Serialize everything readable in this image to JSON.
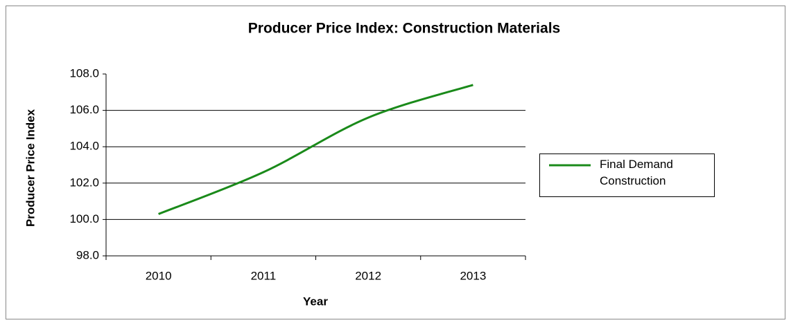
{
  "chart_data": {
    "type": "line",
    "title": "Producer Price Index: Construction Materials",
    "x_label": "Year",
    "y_label": "Producer Price Index",
    "categories": [
      "2010",
      "2011",
      "2012",
      "2013"
    ],
    "series": [
      {
        "name": "Final Demand Construction",
        "color": "#1a8a1a",
        "values": [
          100.3,
          102.6,
          105.6,
          107.4
        ]
      }
    ],
    "ylim": [
      98,
      108
    ],
    "yticks": [
      {
        "value": 98,
        "label": "98.0"
      },
      {
        "value": 100,
        "label": "100.0"
      },
      {
        "value": 102,
        "label": "102.0"
      },
      {
        "value": 104,
        "label": "104.0"
      },
      {
        "value": 106,
        "label": "106.0"
      },
      {
        "value": 108,
        "label": "108.0"
      }
    ],
    "grid": true,
    "legend": "right"
  }
}
